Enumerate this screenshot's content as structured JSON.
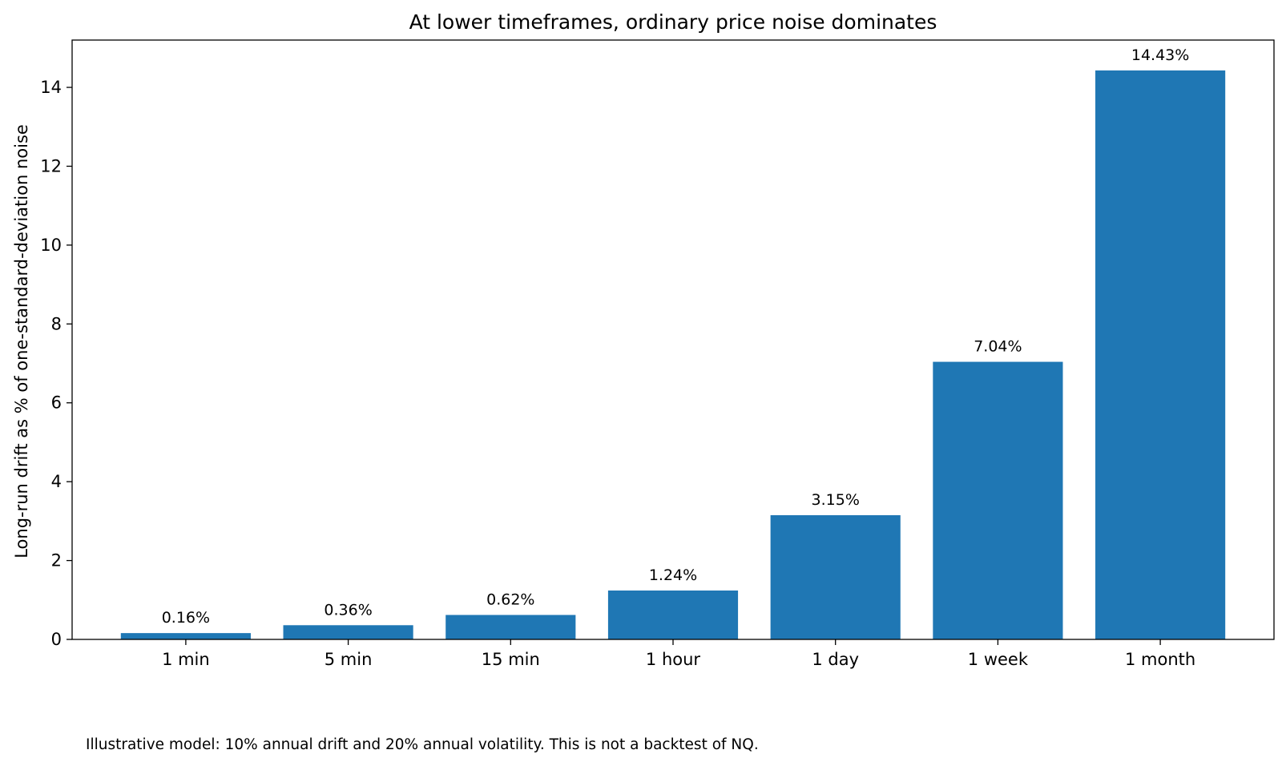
{
  "chart_data": {
    "type": "bar",
    "title": "At lower timeframes, ordinary price noise dominates",
    "xlabel": "",
    "ylabel": "Long-run drift as % of one-standard-deviation noise",
    "categories": [
      "1 min",
      "5 min",
      "15 min",
      "1 hour",
      "1 day",
      "1 week",
      "1 month"
    ],
    "values": [
      0.16,
      0.36,
      0.62,
      1.24,
      3.15,
      7.04,
      14.43
    ],
    "data_labels": [
      "0.16%",
      "0.36%",
      "0.62%",
      "1.24%",
      "3.15%",
      "7.04%",
      "14.43%"
    ],
    "ylim": [
      0,
      15.2
    ],
    "yticks": [
      0,
      2,
      4,
      6,
      8,
      10,
      12,
      14
    ],
    "bar_color": "#1f77b4",
    "grid": false,
    "legend": "none"
  },
  "footnote": "Illustrative model: 10% annual drift and 20% annual volatility. This is not a backtest of NQ."
}
